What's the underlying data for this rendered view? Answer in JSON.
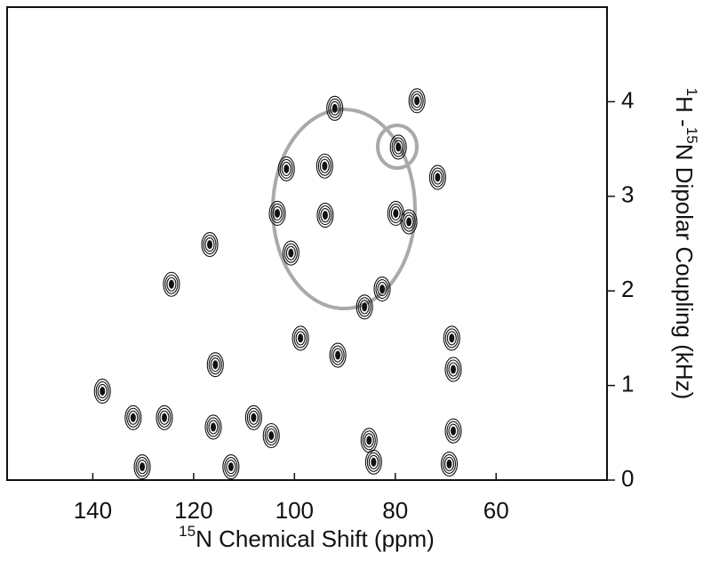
{
  "chart_data": {
    "type": "contour",
    "xlabel": [
      "15",
      "N Chemical Shift (ppm)"
    ],
    "ylabel": [
      "1",
      "H -",
      "15",
      "N Dipolar Coupling (kHz)"
    ],
    "xlim": [
      157,
      38
    ],
    "xticks": [
      140,
      120,
      100,
      80,
      60
    ],
    "ylim": [
      0,
      5
    ],
    "yticks": [
      0,
      1,
      2,
      3,
      4
    ],
    "color": "#111111",
    "peaks": {
      "x": [
        124.4,
        116.8,
        101.6,
        103.4,
        100.7,
        93.9,
        92.0,
        94.0,
        79.4,
        77.3,
        71.6,
        82.6,
        86.1,
        75.7,
        79.9,
        98.8,
        91.4,
        115.7,
        68.8,
        68.5,
        138.1,
        132.0,
        125.8,
        116.1,
        108.1,
        104.6,
        85.2,
        68.5,
        130.2,
        112.6,
        84.3,
        69.3
      ],
      "y": [
        2.07,
        2.49,
        3.29,
        2.82,
        2.4,
        2.8,
        3.93,
        3.32,
        3.52,
        2.73,
        3.2,
        2.02,
        1.83,
        4.01,
        2.82,
        1.5,
        1.32,
        1.22,
        1.5,
        1.17,
        0.94,
        0.66,
        0.66,
        0.56,
        0.66,
        0.47,
        0.42,
        0.52,
        0.14,
        0.14,
        0.19,
        0.17
      ]
    }
  }
}
